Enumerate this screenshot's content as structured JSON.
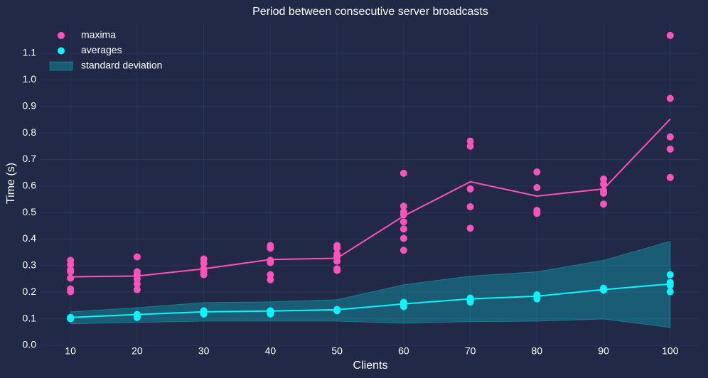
{
  "chart_data": {
    "type": "scatter",
    "title": "Period between consecutive server broadcasts",
    "xlabel": "Clients",
    "ylabel": "Time (s)",
    "xlim": [
      5.5,
      104.5
    ],
    "ylim": [
      0,
      1.215
    ],
    "xticks": [
      10,
      20,
      30,
      40,
      50,
      60,
      70,
      80,
      90,
      100
    ],
    "yticks": [
      {
        "value": 0,
        "label": "0.0"
      },
      0.1,
      0.2,
      0.3,
      0.4,
      0.5,
      0.6,
      0.7,
      0.8,
      0.9,
      {
        "value": 1,
        "label": "1.0"
      },
      1.1
    ],
    "grid": true,
    "legend": "upper left",
    "x": [
      10,
      20,
      30,
      40,
      50,
      60,
      70,
      80,
      90,
      100
    ],
    "series": [
      {
        "type": "scatter",
        "name": "maxima",
        "color": "#FE53BB",
        "x": [
          10,
          10,
          10,
          10,
          10,
          10,
          10,
          20,
          20,
          20,
          20,
          20,
          20,
          30,
          30,
          30,
          30,
          30,
          40,
          40,
          40,
          40,
          40,
          40,
          50,
          50,
          50,
          50,
          50,
          50,
          50,
          60,
          60,
          60,
          60,
          60,
          60,
          60,
          60,
          70,
          70,
          70,
          70,
          70,
          80,
          80,
          80,
          80,
          90,
          90,
          90,
          90,
          90,
          100,
          100,
          100,
          100,
          100
        ],
        "values": [
          0.32,
          0.304,
          0.285,
          0.277,
          0.253,
          0.212,
          0.202,
          0.333,
          0.277,
          0.266,
          0.25,
          0.231,
          0.21,
          0.325,
          0.309,
          0.288,
          0.277,
          0.266,
          0.376,
          0.366,
          0.32,
          0.312,
          0.266,
          0.247,
          0.376,
          0.366,
          0.344,
          0.333,
          0.317,
          0.288,
          0.282,
          0.648,
          0.524,
          0.503,
          0.492,
          0.465,
          0.438,
          0.403,
          0.358,
          0.769,
          0.75,
          0.589,
          0.522,
          0.441,
          0.653,
          0.594,
          0.508,
          0.497,
          0.626,
          0.608,
          0.583,
          0.573,
          0.532,
          1.167,
          0.93,
          0.785,
          0.739,
          0.632
        ]
      },
      {
        "type": "scatter",
        "name": "averages",
        "color": "#08F7FE",
        "x": [
          10,
          10,
          10,
          20,
          20,
          20,
          30,
          30,
          30,
          40,
          40,
          40,
          50,
          50,
          60,
          60,
          60,
          70,
          70,
          70,
          80,
          80,
          80,
          90,
          90,
          100,
          100,
          100,
          100
        ],
        "values": [
          0.105,
          0.102,
          0.1,
          0.116,
          0.11,
          0.105,
          0.13,
          0.122,
          0.118,
          0.13,
          0.125,
          0.118,
          0.135,
          0.13,
          0.162,
          0.155,
          0.146,
          0.178,
          0.17,
          0.163,
          0.19,
          0.183,
          0.175,
          0.215,
          0.208,
          0.266,
          0.237,
          0.226,
          0.202
        ]
      },
      {
        "type": "band",
        "name": "standard deviation",
        "color": "#08F7FE",
        "lower": [
          0.081,
          0.086,
          0.091,
          0.091,
          0.091,
          0.083,
          0.089,
          0.091,
          0.099,
          0.067
        ],
        "upper": [
          0.126,
          0.142,
          0.161,
          0.164,
          0.172,
          0.228,
          0.261,
          0.277,
          0.32,
          0.392
        ]
      },
      {
        "type": "line",
        "color": "#FE53BB",
        "values": [
          0.258,
          0.261,
          0.288,
          0.323,
          0.328,
          0.487,
          0.616,
          0.562,
          0.589,
          0.852
        ]
      },
      {
        "type": "line",
        "color": "#08F7FE",
        "values": [
          0.105,
          0.116,
          0.126,
          0.129,
          0.134,
          0.156,
          0.175,
          0.185,
          0.21,
          0.231
        ]
      }
    ]
  }
}
